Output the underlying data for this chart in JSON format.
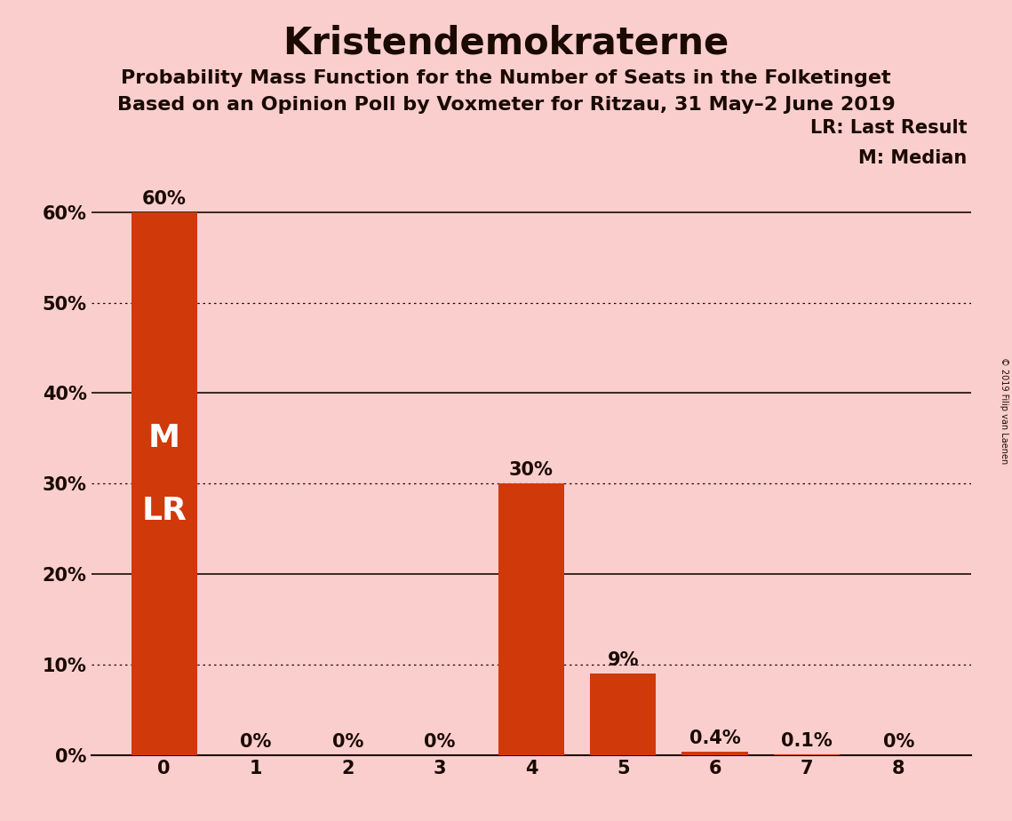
{
  "title": "Kristendemokraterne",
  "subtitle1": "Probability Mass Function for the Number of Seats in the Folketinget",
  "subtitle2": "Based on an Opinion Poll by Voxmeter for Ritzau, 31 May–2 June 2019",
  "copyright": "© 2019 Filip van Laenen",
  "categories": [
    0,
    1,
    2,
    3,
    4,
    5,
    6,
    7,
    8
  ],
  "values": [
    60,
    0,
    0,
    0,
    30,
    9,
    0.4,
    0.1,
    0
  ],
  "bar_color": "#D0390A",
  "background_color": "#FBCECE",
  "label_color_dark": "#1a0a00",
  "label_color_white": "#ffffff",
  "ytick_values": [
    0,
    10,
    20,
    30,
    40,
    50,
    60
  ],
  "ylabel_ticks": [
    "0%",
    "10%",
    "20%",
    "30%",
    "40%",
    "50%",
    "60%"
  ],
  "ylim": [
    0,
    68
  ],
  "grid_major_values": [
    20,
    40,
    60
  ],
  "grid_dotted_values": [
    10,
    30,
    50
  ],
  "legend_LR": "LR: Last Result",
  "legend_M": "M: Median",
  "bar_label_texts": [
    "60%",
    "0%",
    "0%",
    "0%",
    "30%",
    "9%",
    "0.4%",
    "0.1%",
    "0%"
  ],
  "title_fontsize": 30,
  "subtitle_fontsize": 16,
  "tick_fontsize": 15,
  "bar_label_fontsize": 15,
  "inside_label_fontsize": 24,
  "legend_fontsize": 15,
  "MLR_fontsize": 26
}
